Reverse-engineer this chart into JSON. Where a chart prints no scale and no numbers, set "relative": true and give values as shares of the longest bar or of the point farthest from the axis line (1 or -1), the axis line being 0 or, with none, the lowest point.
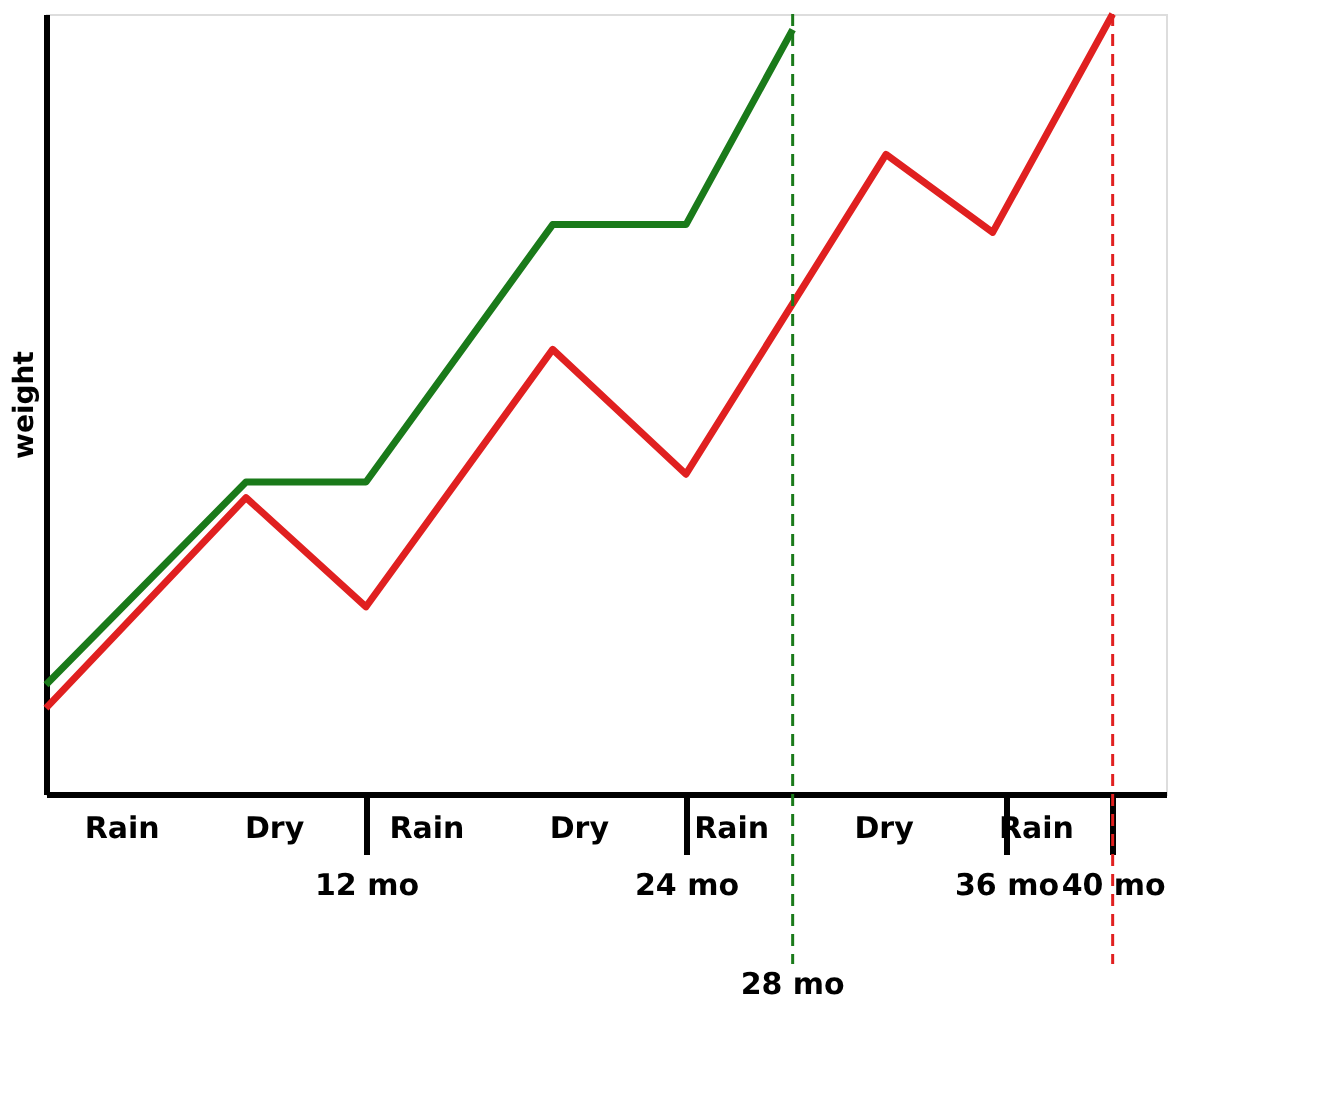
{
  "chart_data": {
    "type": "line",
    "relative": true,
    "ylabel": "weight",
    "grid": false,
    "xlim": [
      0,
      42
    ],
    "xticks": [
      {
        "value": 12,
        "label": "12 mo"
      },
      {
        "value": 24,
        "label": "24 mo"
      },
      {
        "value": 36,
        "label": "36 mo"
      },
      {
        "value": 40,
        "label": "40 mo"
      }
    ],
    "series": [
      {
        "color": "#1a7a1a",
        "x": [
          0,
          7.5,
          12,
          19,
          24,
          28
        ],
        "values": [
          0.14,
          0.4,
          0.4,
          0.73,
          0.73,
          0.98
        ]
      },
      {
        "color": "#e02020",
        "x": [
          0,
          7.5,
          12,
          19,
          24,
          31.5,
          35.5,
          40
        ],
        "values": [
          0.11,
          0.38,
          0.24,
          0.57,
          0.41,
          0.82,
          0.72,
          1.0
        ]
      }
    ],
    "ref_lines": [
      {
        "axis": "x",
        "value": 28,
        "label": "28 mo",
        "color": "#1a7a1a",
        "line_style": "dashed"
      },
      {
        "axis": "x",
        "value": 40,
        "color": "#e02020",
        "line_style": "dashed"
      }
    ],
    "annotations": [
      "Rain",
      "Dry",
      "Rain",
      "Dry",
      "Rain",
      "Dry",
      "Rain"
    ]
  }
}
